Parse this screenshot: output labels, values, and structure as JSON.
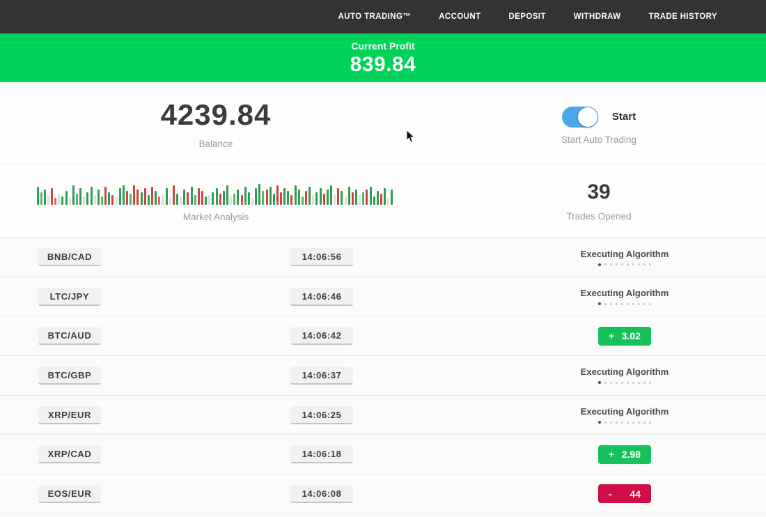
{
  "nav": {
    "items": [
      {
        "id": "auto-trading",
        "label": "AUTO TRADING™"
      },
      {
        "id": "account",
        "label": "ACCOUNT"
      },
      {
        "id": "deposit",
        "label": "DEPOSIT"
      },
      {
        "id": "withdraw",
        "label": "WITHDRAW"
      },
      {
        "id": "trade-history",
        "label": "TRADE HISTORY"
      }
    ]
  },
  "banner": {
    "label": "Current Profit",
    "value": "839.84",
    "bg_color": "#00d25c"
  },
  "stats": {
    "balance": {
      "value": "4239.84",
      "label": "Balance"
    },
    "auto_trading": {
      "toggle_label": "Start",
      "label": "Start Auto Trading",
      "toggle_state": "on",
      "toggle_color": "#4aa7e9"
    },
    "trades_opened": {
      "value": "39",
      "label": "Trades Opened"
    },
    "market_analysis": {
      "label": "Market Analysis",
      "colors": {
        "g": "#2f9e52",
        "G": "#53b86d",
        "r": "#cc4643",
        "R": "#d96a66",
        "p": "#dedee0"
      },
      "bars": [
        [
          "g",
          26
        ],
        [
          "G",
          18
        ],
        [
          "g",
          22
        ],
        [
          "p",
          14
        ],
        [
          "r",
          24
        ],
        [
          "R",
          10
        ],
        [
          "p",
          16
        ],
        [
          "g",
          12
        ],
        [
          "g",
          20
        ],
        [
          "p",
          10
        ],
        [
          "g",
          28
        ],
        [
          "G",
          16
        ],
        [
          "g",
          24
        ],
        [
          "p",
          12
        ],
        [
          "g",
          18
        ],
        [
          "g",
          26
        ],
        [
          "p",
          14
        ],
        [
          "g",
          22
        ],
        [
          "G",
          12
        ],
        [
          "r",
          26
        ],
        [
          "g",
          18
        ],
        [
          "r",
          14
        ],
        [
          "p",
          12
        ],
        [
          "g",
          24
        ],
        [
          "g",
          28
        ],
        [
          "r",
          20
        ],
        [
          "G",
          16
        ],
        [
          "r",
          28
        ],
        [
          "r",
          22
        ],
        [
          "g",
          18
        ],
        [
          "r",
          24
        ],
        [
          "g",
          14
        ],
        [
          "r",
          26
        ],
        [
          "g",
          20
        ],
        [
          "R",
          12
        ],
        [
          "p",
          14
        ],
        [
          "g",
          24
        ],
        [
          "p",
          10
        ],
        [
          "r",
          28
        ],
        [
          "g",
          16
        ],
        [
          "p",
          12
        ],
        [
          "g",
          22
        ],
        [
          "r",
          18
        ],
        [
          "g",
          26
        ],
        [
          "G",
          14
        ],
        [
          "r",
          24
        ],
        [
          "r",
          20
        ],
        [
          "g",
          12
        ],
        [
          "p",
          14
        ],
        [
          "g",
          18
        ],
        [
          "g",
          24
        ],
        [
          "r",
          16
        ],
        [
          "g",
          20
        ],
        [
          "g",
          28
        ],
        [
          "p",
          12
        ],
        [
          "G",
          16
        ],
        [
          "g",
          22
        ],
        [
          "r",
          14
        ],
        [
          "g",
          26
        ],
        [
          "g",
          18
        ],
        [
          "p",
          10
        ],
        [
          "g",
          24
        ],
        [
          "g",
          30
        ],
        [
          "G",
          20
        ],
        [
          "r",
          22
        ],
        [
          "g",
          26
        ],
        [
          "g",
          16
        ],
        [
          "r",
          28
        ],
        [
          "r",
          18
        ],
        [
          "g",
          24
        ],
        [
          "g",
          20
        ],
        [
          "r",
          14
        ],
        [
          "g",
          28
        ],
        [
          "g",
          22
        ],
        [
          "G",
          12
        ],
        [
          "r",
          20
        ],
        [
          "g",
          26
        ],
        [
          "p",
          14
        ],
        [
          "g",
          18
        ],
        [
          "g",
          24
        ],
        [
          "r",
          16
        ],
        [
          "g",
          22
        ],
        [
          "g",
          28
        ],
        [
          "p",
          14
        ],
        [
          "r",
          24
        ],
        [
          "g",
          20
        ],
        [
          "p",
          12
        ],
        [
          "g",
          26
        ],
        [
          "r",
          18
        ],
        [
          "g",
          22
        ],
        [
          "p",
          14
        ],
        [
          "G",
          18
        ],
        [
          "r",
          22
        ],
        [
          "g",
          26
        ],
        [
          "g",
          12
        ],
        [
          "g",
          20
        ],
        [
          "r",
          16
        ],
        [
          "g",
          24
        ],
        [
          "p",
          10
        ],
        [
          "g",
          22
        ]
      ]
    }
  },
  "trades": {
    "executing_label": "Executing Algorithm",
    "dots_total": 10,
    "dots_active": 1,
    "profit_color": "#16c25a",
    "loss_color": "#cf0d47",
    "rows": [
      {
        "pair": "BNB/CAD",
        "time": "14:06:56",
        "status": "executing"
      },
      {
        "pair": "LTC/JPY",
        "time": "14:06:46",
        "status": "executing"
      },
      {
        "pair": "BTC/AUD",
        "time": "14:06:42",
        "status": "profit",
        "sign": "+",
        "amount": "3.02"
      },
      {
        "pair": "BTC/GBP",
        "time": "14:06:37",
        "status": "executing"
      },
      {
        "pair": "XRP/EUR",
        "time": "14:06:25",
        "status": "executing"
      },
      {
        "pair": "XRP/CAD",
        "time": "14:06:18",
        "status": "profit",
        "sign": "+",
        "amount": "2.98"
      },
      {
        "pair": "EOS/EUR",
        "time": "14:06:08",
        "status": "loss",
        "sign": "-",
        "amount": "44"
      }
    ]
  }
}
